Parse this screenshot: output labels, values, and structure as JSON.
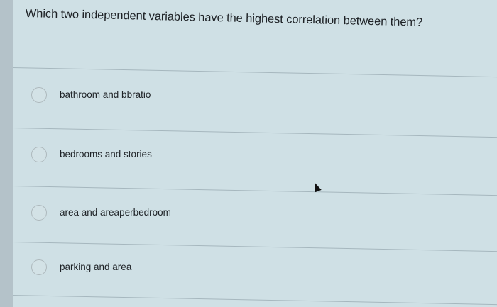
{
  "question": "Which two independent variables have the highest correlation between them?",
  "options": [
    {
      "label": "bathroom and bbratio"
    },
    {
      "label": "bedrooms and stories"
    },
    {
      "label": "area and areaperbedroom"
    },
    {
      "label": "parking and area"
    }
  ],
  "colors": {
    "background": "#cfe0e5",
    "text": "#1e2226",
    "divider": "#a6b7be"
  }
}
